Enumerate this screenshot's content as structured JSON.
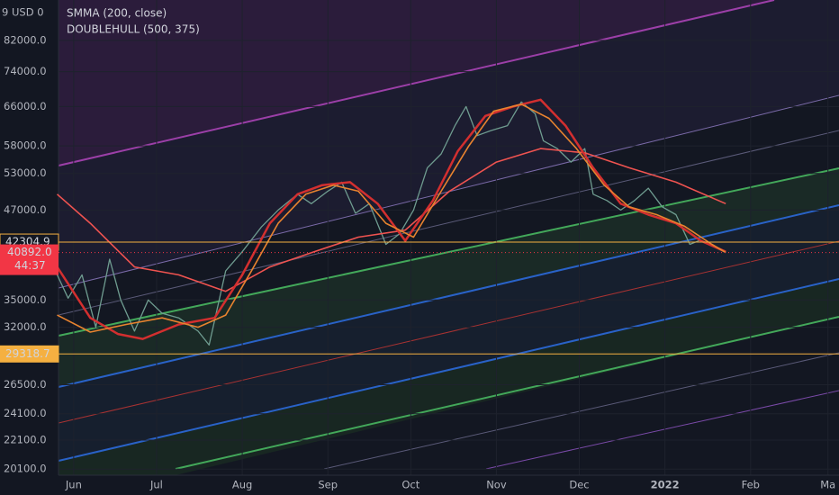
{
  "chart_data": {
    "type": "line",
    "header_text": "9 USD 0",
    "log_scale": true,
    "grid": true,
    "xlim": [
      -5.5,
      277
    ],
    "ylim": [
      19700,
      93600
    ],
    "xticks": [
      {
        "value": 0,
        "label": "Jun"
      },
      {
        "value": 30,
        "label": "Jul"
      },
      {
        "value": 61,
        "label": "Aug"
      },
      {
        "value": 92,
        "label": "Sep"
      },
      {
        "value": 122,
        "label": "Oct"
      },
      {
        "value": 153,
        "label": "Nov"
      },
      {
        "value": 183,
        "label": "Dec"
      },
      {
        "value": 214,
        "label": "2022"
      },
      {
        "value": 245,
        "label": "Feb"
      },
      {
        "value": 273,
        "label": "Ma"
      }
    ],
    "yticks": [
      {
        "value": 82000,
        "label": "82000.0"
      },
      {
        "value": 74000,
        "label": "74000.0"
      },
      {
        "value": 66000,
        "label": "66000.0"
      },
      {
        "value": 58000,
        "label": "58000.0"
      },
      {
        "value": 53000,
        "label": "53000.0"
      },
      {
        "value": 47000,
        "label": "47000.0"
      },
      {
        "value": 35000,
        "label": "35000.0"
      },
      {
        "value": 32000,
        "label": "32000.0"
      },
      {
        "value": 26500,
        "label": "26500.0"
      },
      {
        "value": 24100,
        "label": "24100.0"
      },
      {
        "value": 22100,
        "label": "22100.0"
      },
      {
        "value": 20100,
        "label": "20100.0"
      }
    ],
    "price_lines": [
      {
        "value": 42304.9,
        "color": "#f5b041"
      },
      {
        "value": 29318.7,
        "color": "#f5b041"
      }
    ],
    "last_price": {
      "value": 40892,
      "label": "40892.0",
      "countdown": "44:37",
      "color": "#f23645"
    },
    "series": [
      {
        "color": "#6f9c90",
        "x": [
          -6,
          -2,
          3,
          8,
          13,
          17,
          22,
          27,
          32,
          38,
          45,
          49,
          55,
          61,
          68,
          74,
          81,
          86,
          92,
          97,
          102,
          107,
          113,
          118,
          123,
          128,
          133,
          138,
          142,
          146,
          151,
          157,
          162,
          167,
          170,
          175,
          180,
          185,
          188,
          193,
          198,
          203,
          208,
          213,
          218,
          223,
          227,
          232,
          236
        ],
        "values": [
          38000,
          35200,
          38000,
          32000,
          40000,
          35000,
          31600,
          35000,
          33500,
          33000,
          31600,
          30200,
          38500,
          41000,
          44500,
          47000,
          49500,
          48000,
          50000,
          51500,
          46500,
          48000,
          42000,
          43500,
          47000,
          54000,
          56500,
          62000,
          66000,
          60000,
          61000,
          62000,
          67000,
          64500,
          59000,
          57500,
          55000,
          57500,
          49500,
          48500,
          47000,
          48500,
          50500,
          47500,
          46300,
          42000,
          42600,
          41600,
          40900
        ]
      },
      {
        "name": "SMMA (200, close)",
        "color": "#ef5350",
        "x": [
          -6,
          6,
          22,
          38,
          55,
          71,
          87,
          103,
          120,
          136,
          153,
          169,
          185,
          201,
          218,
          236
        ],
        "values": [
          49500,
          45000,
          39000,
          38000,
          36000,
          39000,
          41000,
          43000,
          44000,
          50000,
          55000,
          57500,
          56700,
          54000,
          51500,
          48000
        ]
      },
      {
        "name": "DOUBLEHULL (500, 375)",
        "color": "#d32f2f",
        "x": [
          -6,
          6,
          16,
          25,
          38,
          51,
          61,
          71,
          81,
          90,
          100,
          110,
          120,
          130,
          139,
          149,
          159,
          169,
          178,
          188,
          198,
          208,
          218,
          227,
          236
        ],
        "values": [
          39000,
          33000,
          31300,
          30800,
          32300,
          33000,
          38000,
          45000,
          49500,
          51000,
          51500,
          48000,
          42500,
          48500,
          57000,
          64000,
          66000,
          67500,
          62000,
          54000,
          48000,
          46300,
          45000,
          42500,
          41000
        ]
      },
      {
        "color": "#e8832f",
        "x": [
          -6,
          6,
          19,
          32,
          45,
          55,
          64,
          74,
          84,
          94,
          103,
          113,
          123,
          133,
          143,
          152,
          162,
          172,
          182,
          192,
          201,
          211,
          221,
          231,
          236
        ],
        "values": [
          33300,
          31500,
          32300,
          33000,
          32000,
          33300,
          38300,
          45000,
          49500,
          51000,
          50000,
          45000,
          43000,
          50000,
          58000,
          65000,
          66500,
          63500,
          57500,
          51000,
          47500,
          46300,
          44600,
          42000,
          40900
        ]
      }
    ]
  }
}
